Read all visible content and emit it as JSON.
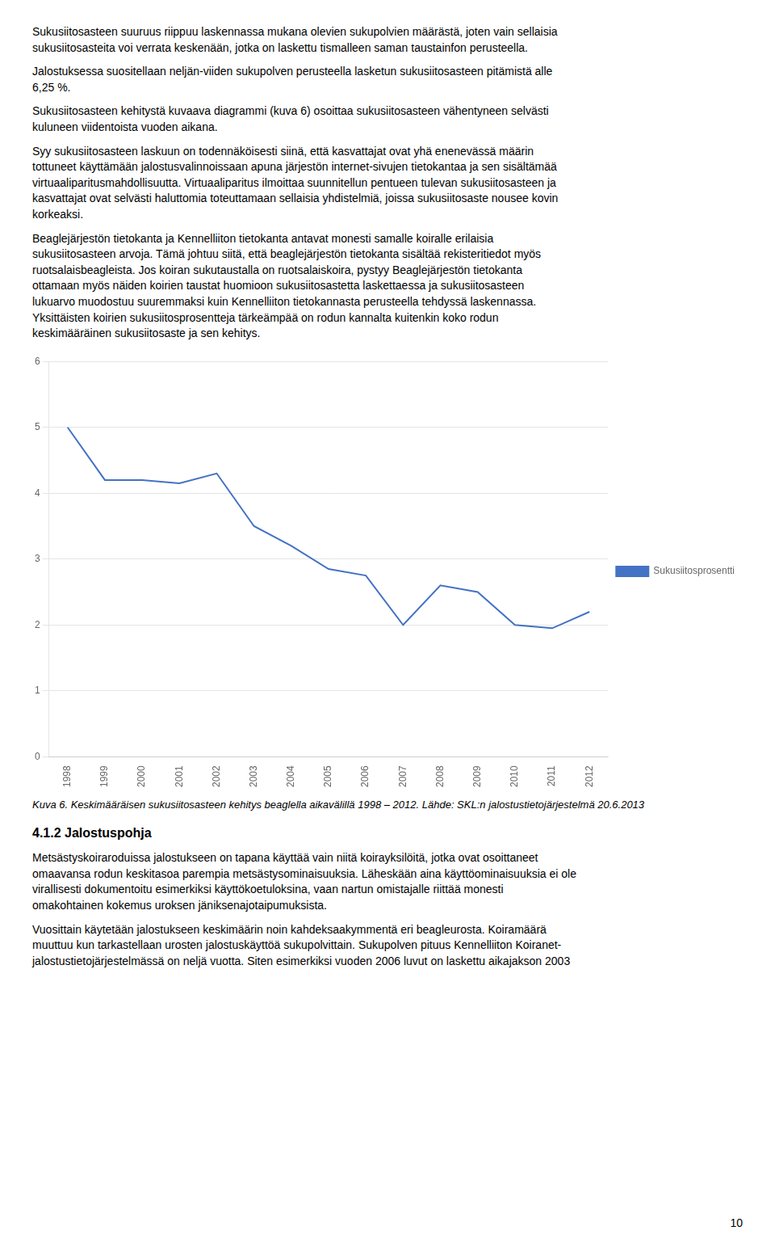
{
  "chart_data": {
    "type": "line",
    "x": [
      1998,
      1999,
      2000,
      2001,
      2002,
      2003,
      2004,
      2005,
      2006,
      2007,
      2008,
      2009,
      2010,
      2011,
      2012
    ],
    "series": [
      {
        "name": "Sukusiitosprosentti",
        "color": "#4472C4",
        "values": [
          5.0,
          4.2,
          4.2,
          4.15,
          4.3,
          3.5,
          3.2,
          2.85,
          2.75,
          2.0,
          2.6,
          2.5,
          2.0,
          1.95,
          2.2
        ]
      }
    ],
    "xlim": [
      1997.5,
      2012.5
    ],
    "xticks": [
      1998,
      1999,
      2000,
      2001,
      2002,
      2003,
      2004,
      2005,
      2006,
      2007,
      2008,
      2009,
      2010,
      2011,
      2012
    ],
    "ylim": [
      0,
      6
    ],
    "yticks": [
      0,
      1,
      2,
      3,
      4,
      5,
      6
    ],
    "grid": true,
    "legend": "right",
    "annotations": [
      "Sukusiitosasteen suuruus riippuu laskennassa mukana olevien sukupolvien määrästä, joten vain sellaisia\nsukusiitosasteita voi verrata keskenään, jotka on laskettu tismalleen saman taustainfon perusteella.",
      "Jalostuksessa suositellaan neljän-viiden sukupolven perusteella lasketun sukusiitosasteen pitämistä alle\n6,25 %.",
      "Sukusiitosasteen kehitystä kuvaava diagrammi (kuva 6) osoittaa sukusiitosasteen vähentyneen selvästi\nkuluneen viidentoista vuoden aikana.",
      "Syy sukusiitosasteen laskuun on todennäköisesti siinä, että kasvattajat ovat yhä enenevässä määrin\ntottuneet käyttämään jalostusvalinnoissaan apuna järjestön internet-sivujen tietokantaa ja sen sisältämää\nvirtuaaliparitusmahdollisuutta. Virtuaaliparitus ilmoittaa suunnitellun pentueen tulevan sukusiitosasteen ja\nkasvattajat ovat selvästi haluttomia toteuttamaan sellaisia yhdistelmiä, joissa sukusiitosaste nousee kovin\nkorkeaksi.",
      "Beaglejärjestön tietokanta ja Kennelliiton tietokanta antavat monesti samalle koiralle erilaisia\nsukusiitosasteen arvoja. Tämä johtuu siitä, että beaglejärjestön tietokanta sisältää rekisteritiedot myös\nruotsalaisbeagleista. Jos koiran sukutaustalla on ruotsalaiskoira, pystyy Beaglejärjestön tietokanta\nottamaan myös näiden koirien taustat huomioon sukusiitosastetta laskettaessa ja sukusiitosasteen\nlukuarvo muodostuu suuremmaksi kuin Kennelliiton tietokannasta perusteella tehdyssä laskennassa.\nYksittäisten koirien sukusiitosprosentteja tärkeämpää on rodun kannalta kuitenkin koko rodun\nkeskimääräinen sukusiitosaste ja sen kehitys.",
      "Kuva 6. Keskimääräisen sukusiitosasteen kehitys beaglella aikavälillä 1998 – 2012. Lähde: SKL:n jalostustietojärjestelmä 20.6.2013",
      "4.1.2 Jalostuspohja",
      "Metsästyskoiraroduissa jalostukseen on tapana käyttää vain niitä koirayksilöitä, jotka ovat osoittaneet\nomaavansa rodun keskitasoa parempia metsästysominaisuuksia. Läheskään aina käyttöominaisuuksia ei ole\nvirallisesti dokumentoitu esimerkiksi käyttökoetuloksina, vaan nartun omistajalle riittää monesti\nomakohtainen kokemus uroksen jäniksenajotaipumuksista.",
      "Vuosittain käytetään jalostukseen keskimäärin noin kahdeksaakymmentä eri beagleurosta. Koiramäärä\nmuuttuu kun tarkastellaan urosten jalostuskäyttöä sukupolvittain. Sukupolven pituus Kennelliiton Koiranet-\njalostustietojärjestelmässä on neljä vuotta. Siten esimerkiksi vuoden 2006 luvut on laskettu aikajakson 2003",
      "10"
    ]
  }
}
